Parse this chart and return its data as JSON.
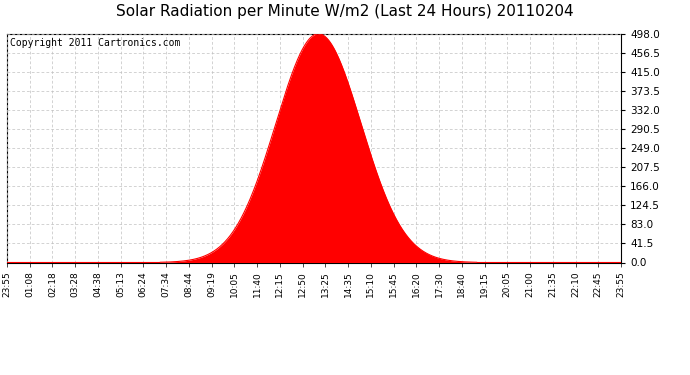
{
  "title": "Solar Radiation per Minute W/m2 (Last 24 Hours) 20110204",
  "copyright": "Copyright 2011 Cartronics.com",
  "y_ticks": [
    0.0,
    41.5,
    83.0,
    124.5,
    166.0,
    207.5,
    249.0,
    290.5,
    332.0,
    373.5,
    415.0,
    456.5,
    498.0
  ],
  "y_max": 498.0,
  "y_min": 0.0,
  "peak_value": 498.0,
  "peak_minute": 730,
  "sigma": 100,
  "fill_color": "#ff0000",
  "line_color": "#ff0000",
  "background_color": "#ffffff",
  "grid_color": "#c0c0c0",
  "dashed_line_color": "#ff0000",
  "title_fontsize": 11,
  "copyright_fontsize": 7,
  "x_labels": [
    "23:55",
    "01:08",
    "02:18",
    "03:28",
    "04:38",
    "05:13",
    "06:24",
    "07:34",
    "08:44",
    "09:19",
    "10:05",
    "11:40",
    "12:15",
    "12:50",
    "13:25",
    "14:35",
    "15:10",
    "15:45",
    "16:20",
    "17:30",
    "18:40",
    "19:15",
    "20:05",
    "21:00",
    "21:35",
    "22:10",
    "22:45",
    "23:55"
  ],
  "n_ticks": 28,
  "n_points": 1440
}
